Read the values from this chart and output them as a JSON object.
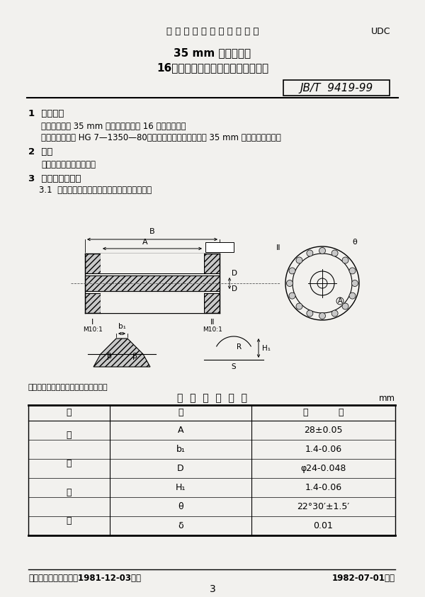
{
  "title_header": "中 华 人 民 共 和 国 专 业 标 准",
  "udc": "UDC",
  "title_main1": "35 mm 电影放映机",
  "title_main2": "16牙间歇齿轮齿形、主要尺寸和精度",
  "standard_no": "JB/T  9419-99",
  "section1_title": "1  适用范围",
  "section1_text1": "本标准适用于 35 mm 电影放映机上的 16 牙间歇齿轮。",
  "section1_text2": "影片片孔应符合 HG 7—1350—80《电影胶片尺寸》中的关于 35 mm 影片片孔的规定。",
  "section2_title": "2  齿形",
  "section2_text": "间歇齿轮采用圆弧齿形。",
  "section3_title": "3  主要尺寸和精度",
  "section3_1": "3.1  间歇齿轮的标准尺寸和推荐尺寸见图及表。",
  "note": "注：本图不表示间歇齿轮的具体结构。",
  "table_title": "间  歇  齿  轮  尺  寸",
  "table_unit": "mm",
  "table_left_header_chars": [
    "标",
    "准",
    "尺",
    "寸"
  ],
  "table_rows": [
    [
      "A",
      "28±0.05"
    ],
    [
      "b₁",
      "1.4-0.06"
    ],
    [
      "D",
      "φ24-0.048"
    ],
    [
      "H₁",
      "1.4-0.06"
    ],
    [
      "θ",
      "22°30′±1.5′"
    ],
    [
      "δ",
      "0.01"
    ]
  ],
  "footer_left": "国家仪器仪表工业总局1981-12-03发布",
  "footer_right": "1982-07-01实施",
  "page_num": "3",
  "bg_color": "#f2f1ee"
}
